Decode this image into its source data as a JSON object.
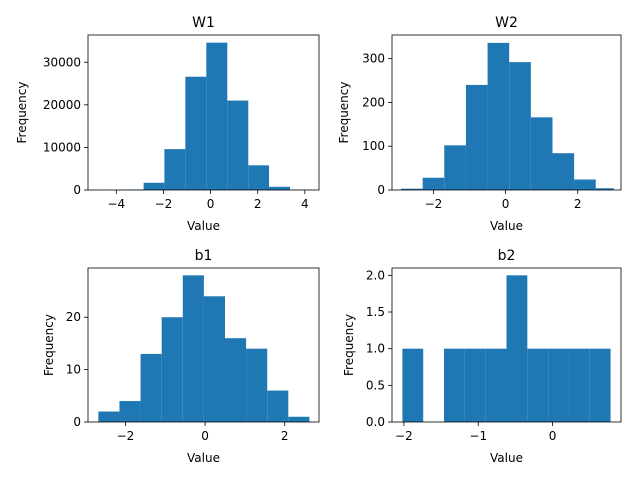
{
  "chart_data": [
    {
      "type": "bar",
      "title": "W1",
      "xlabel": "Value",
      "ylabel": "Frequency",
      "bar_color": "#1f77b4",
      "xlim": [
        -5.2,
        4.6
      ],
      "ylim": [
        0,
        36400
      ],
      "xticks": [
        -4,
        -2,
        0,
        2,
        4
      ],
      "yticks": [
        0,
        10000,
        20000,
        30000
      ],
      "bin_edges": [
        -4.62,
        -3.73,
        -2.84,
        -1.96,
        -1.07,
        -0.18,
        0.71,
        1.6,
        2.48,
        3.37,
        4.26
      ],
      "values": [
        5,
        95,
        1700,
        9600,
        26600,
        34600,
        21000,
        5800,
        750,
        60
      ],
      "grid": false,
      "legend": "none"
    },
    {
      "type": "bar",
      "title": "W2",
      "xlabel": "Value",
      "ylabel": "Frequency",
      "bar_color": "#1f77b4",
      "xlim": [
        -3.15,
        3.2
      ],
      "ylim": [
        0,
        354
      ],
      "xticks": [
        -2,
        0,
        2
      ],
      "yticks": [
        0,
        100,
        200,
        300
      ],
      "bin_edges": [
        -2.9,
        -2.3,
        -1.7,
        -1.1,
        -0.5,
        0.1,
        0.7,
        1.3,
        1.9,
        2.5,
        3.0
      ],
      "values": [
        3,
        28,
        102,
        240,
        336,
        292,
        166,
        84,
        24,
        4
      ],
      "grid": false,
      "legend": "none"
    },
    {
      "type": "bar",
      "title": "b1",
      "xlabel": "Value",
      "ylabel": "Frequency",
      "bar_color": "#1f77b4",
      "xlim": [
        -2.94,
        2.86
      ],
      "ylim": [
        0,
        29.4
      ],
      "xticks": [
        -2,
        0,
        2
      ],
      "yticks": [
        0,
        10,
        20
      ],
      "bin_edges": [
        -2.68,
        -2.15,
        -1.62,
        -1.09,
        -0.56,
        -0.03,
        0.5,
        1.03,
        1.56,
        2.09,
        2.62
      ],
      "values": [
        2,
        4,
        13,
        20,
        28,
        24,
        16,
        14,
        6,
        1
      ],
      "grid": false,
      "legend": "none"
    },
    {
      "type": "bar",
      "title": "b2",
      "xlabel": "Value",
      "ylabel": "Frequency",
      "bar_color": "#1f77b4",
      "xlim": [
        -2.16,
        0.92
      ],
      "ylim": [
        0,
        2.1
      ],
      "xticks": [
        -2,
        -1,
        0
      ],
      "yticks": [
        0.0,
        0.5,
        1.0,
        1.5,
        2.0
      ],
      "ytick_labels": [
        "0.0",
        "0.5",
        "1.0",
        "1.5",
        "2.0"
      ],
      "bin_edges": [
        -2.02,
        -1.74,
        -1.46,
        -1.18,
        -0.9,
        -0.62,
        -0.34,
        -0.06,
        0.22,
        0.5,
        0.78
      ],
      "values": [
        1,
        0,
        1,
        1,
        1,
        2,
        1,
        1,
        1,
        1
      ],
      "grid": false,
      "legend": "none"
    }
  ]
}
